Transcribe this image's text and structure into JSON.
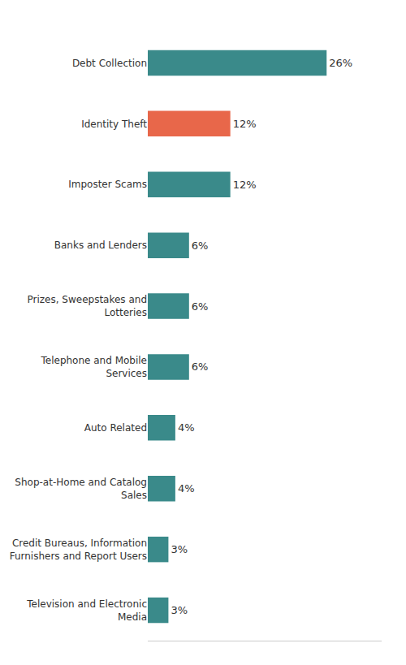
{
  "chart_data": {
    "type": "bar",
    "orientation": "horizontal",
    "categories": [
      "Television and Electronic\nMedia",
      "Credit Bureaus, Information\nFurnishers and Report Users",
      "Shop-at-Home and Catalog\nSales",
      "Auto Related",
      "Telephone and Mobile\nServices",
      "Prizes, Sweepstakes and\nLotteries",
      "Banks and Lenders",
      "Imposter Scams",
      "Identity Theft",
      "Debt Collection"
    ],
    "values": [
      3,
      3,
      4,
      4,
      6,
      6,
      6,
      12,
      12,
      26
    ],
    "value_labels": [
      "3%",
      "3%",
      "4%",
      "4%",
      "6%",
      "6%",
      "6%",
      "12%",
      "12%",
      "26%"
    ],
    "colors": [
      "#3a8a8a",
      "#3a8a8a",
      "#3a8a8a",
      "#3a8a8a",
      "#3a8a8a",
      "#3a8a8a",
      "#3a8a8a",
      "#3a8a8a",
      "#e8674a",
      "#3a8a8a"
    ],
    "xlim": [
      0,
      34
    ],
    "data_labels": true,
    "tick_labels": "y",
    "grid": false
  }
}
